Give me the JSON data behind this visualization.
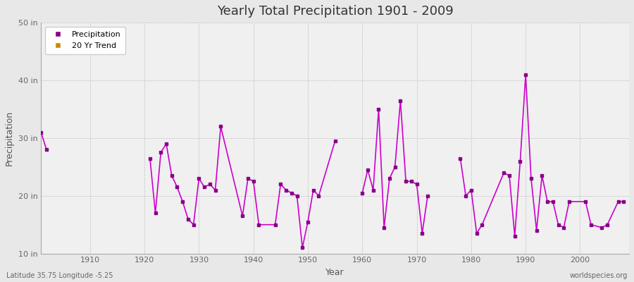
{
  "title": "Yearly Total Precipitation 1901 - 2009",
  "xlabel": "Year",
  "ylabel": "Precipitation",
  "xlim": [
    1901,
    2009
  ],
  "ylim": [
    10,
    50
  ],
  "yticks": [
    10,
    20,
    30,
    40,
    50
  ],
  "ytick_labels": [
    "10 in",
    "20 in",
    "30 in",
    "40 in",
    "50 in"
  ],
  "xtick_positions": [
    1910,
    1920,
    1930,
    1940,
    1950,
    1960,
    1970,
    1980,
    1990,
    2000
  ],
  "bg_color": "#e8e8e8",
  "plot_bg_color": "#f0f0f0",
  "line_color": "#cc00cc",
  "marker_color": "#880088",
  "grid_color": "#bbbbbb",
  "subtitle_left": "Latitude 35.75 Longitude -5.25",
  "subtitle_right": "worldspecies.org",
  "legend_entries": [
    "Precipitation",
    "20 Yr Trend"
  ],
  "legend_colors": [
    "#880088",
    "#cc8800"
  ],
  "years": [
    1901,
    1902,
    1921,
    1922,
    1923,
    1924,
    1925,
    1926,
    1927,
    1928,
    1929,
    1930,
    1931,
    1932,
    1933,
    1934,
    1938,
    1939,
    1940,
    1941,
    1944,
    1945,
    1946,
    1947,
    1948,
    1949,
    1950,
    1951,
    1952,
    1955,
    1960,
    1961,
    1962,
    1963,
    1964,
    1965,
    1966,
    1967,
    1968,
    1969,
    1970,
    1971,
    1972,
    1978,
    1979,
    1980,
    1981,
    1982,
    1986,
    1987,
    1988,
    1989,
    1990,
    1991,
    1992,
    1993,
    1994,
    1995,
    1996,
    1997,
    1998,
    2001,
    2002,
    2004,
    2005,
    2007,
    2008
  ],
  "precip": [
    31.0,
    28.0,
    26.5,
    17.0,
    27.5,
    29.0,
    23.5,
    21.5,
    19.0,
    16.0,
    15.0,
    23.0,
    21.5,
    22.0,
    21.0,
    32.0,
    16.5,
    23.0,
    22.5,
    15.0,
    15.0,
    22.0,
    21.0,
    20.5,
    20.0,
    11.0,
    15.5,
    21.0,
    20.0,
    29.5,
    20.5,
    24.5,
    21.0,
    35.0,
    14.5,
    23.0,
    25.0,
    36.5,
    22.5,
    22.5,
    22.0,
    13.5,
    20.0,
    26.5,
    20.0,
    21.0,
    13.5,
    15.0,
    24.0,
    23.5,
    13.0,
    26.0,
    41.0,
    23.0,
    14.0,
    23.5,
    19.0,
    19.0,
    15.0,
    14.5,
    19.0,
    19.0,
    15.0,
    14.5,
    15.0,
    19.0,
    19.0
  ]
}
